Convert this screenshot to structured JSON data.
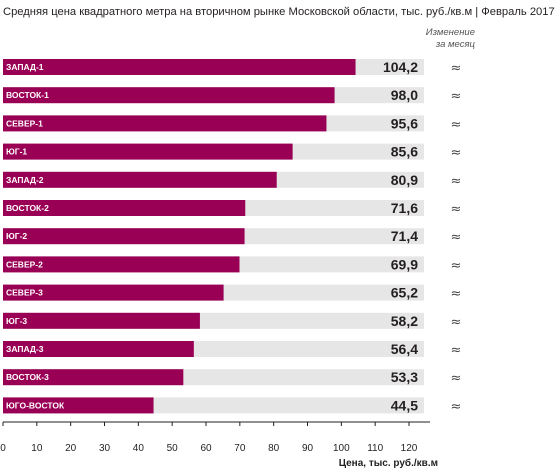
{
  "chart_data": {
    "type": "bar",
    "orientation": "horizontal",
    "title": "Средняя цена квадратного метра на вторичном рынке Московской области, тыс. руб./кв.м | Февраль 2017",
    "change_header": [
      "Изменение",
      "за месяц"
    ],
    "categories": [
      "ЗАПАД-1",
      "ВОСТОК-1",
      "СЕВЕР-1",
      "ЮГ-1",
      "ЗАПАД-2",
      "ВОСТОК-2",
      "ЮГ-2",
      "СЕВЕР-2",
      "СЕВЕР-3",
      "ЮГ-3",
      "ЗАПАД-3",
      "ВОСТОК-3",
      "ЮГО-ВОСТОК"
    ],
    "values": [
      104.2,
      98.0,
      95.6,
      85.6,
      80.9,
      71.6,
      71.4,
      69.9,
      65.2,
      58.2,
      56.4,
      53.3,
      44.5
    ],
    "value_labels": [
      "104,2",
      "98,0",
      "95,6",
      "85,6",
      "80,9",
      "71,6",
      "71,4",
      "69,9",
      "65,2",
      "58,2",
      "56,4",
      "53,3",
      "44,5"
    ],
    "changes": [
      "≈",
      "≈",
      "≈",
      "≈",
      "≈",
      "≈",
      "≈",
      "≈",
      "≈",
      "≈",
      "≈",
      "≈",
      "≈"
    ],
    "xlabel": "Цена, тыс. руб./кв.м",
    "xlim": [
      0,
      125
    ],
    "ticks": [
      0,
      10,
      20,
      30,
      40,
      50,
      60,
      70,
      80,
      90,
      100,
      110,
      120
    ],
    "grid": false,
    "colors": {
      "bar": "#990055",
      "track": "#e6e6e6",
      "text": "#231f20"
    }
  }
}
